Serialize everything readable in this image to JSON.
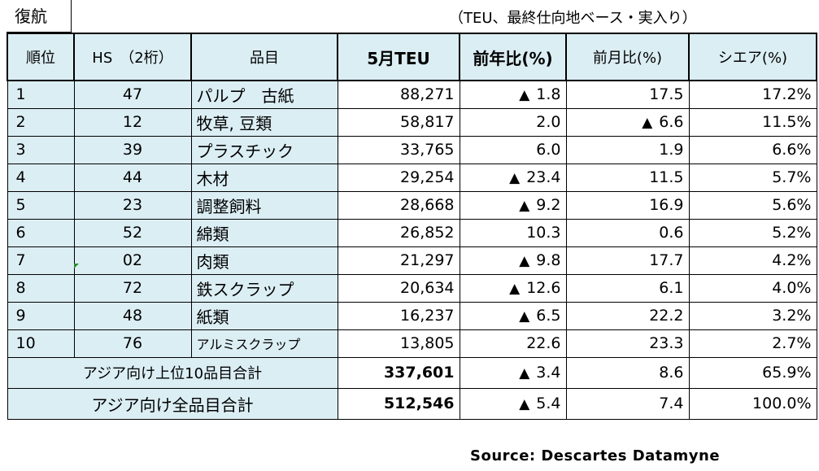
{
  "title": "復航",
  "unit_note": "（TEU、最終仕向地ベース・実入り）",
  "headers": {
    "rank": "順位",
    "hs": "HS　（2桁）",
    "item": "品目",
    "teu": "5月TEU",
    "yoy": "前年比(%)",
    "mom": "前月比(%)",
    "share": "シエア(%)"
  },
  "rows": [
    {
      "rank": "1",
      "hs": "47",
      "item": "パルプ　古紙",
      "teu": "88,271",
      "yoy_mark": "▲",
      "yoy": "1.8",
      "mom_mark": "",
      "mom": "17.5",
      "share": "17.2%"
    },
    {
      "rank": "2",
      "hs": "12",
      "item": "牧草, 豆類",
      "teu": "58,817",
      "yoy_mark": "",
      "yoy": "2.0",
      "mom_mark": "▲",
      "mom": "6.6",
      "share": "11.5%"
    },
    {
      "rank": "3",
      "hs": "39",
      "item": "プラスチック",
      "teu": "33,765",
      "yoy_mark": "",
      "yoy": "6.0",
      "mom_mark": "",
      "mom": "1.9",
      "share": "6.6%"
    },
    {
      "rank": "4",
      "hs": "44",
      "item": "木材",
      "teu": "29,254",
      "yoy_mark": "▲",
      "yoy": "23.4",
      "mom_mark": "",
      "mom": "11.5",
      "share": "5.7%"
    },
    {
      "rank": "5",
      "hs": "23",
      "item": "調整飼料",
      "teu": "28,668",
      "yoy_mark": "▲",
      "yoy": "9.2",
      "mom_mark": "",
      "mom": "16.9",
      "share": "5.6%"
    },
    {
      "rank": "6",
      "hs": "52",
      "item": "綿類",
      "teu": "26,852",
      "yoy_mark": "",
      "yoy": "10.3",
      "mom_mark": "",
      "mom": "0.6",
      "share": "5.2%"
    },
    {
      "rank": "7",
      "hs": "02",
      "item": "肉類",
      "teu": "21,297",
      "yoy_mark": "▲",
      "yoy": "9.8",
      "mom_mark": "",
      "mom": "17.7",
      "share": "4.2%"
    },
    {
      "rank": "8",
      "hs": "72",
      "item": "鉄スクラップ",
      "teu": "20,634",
      "yoy_mark": "▲",
      "yoy": "12.6",
      "mom_mark": "",
      "mom": "6.1",
      "share": "4.0%"
    },
    {
      "rank": "9",
      "hs": "48",
      "item": "紙類",
      "teu": "16,237",
      "yoy_mark": "▲",
      "yoy": "6.5",
      "mom_mark": "",
      "mom": "22.2",
      "share": "3.2%"
    },
    {
      "rank": "10",
      "hs": "76",
      "item": "アルミスクラップ",
      "teu": "13,805",
      "yoy_mark": "",
      "yoy": "22.6",
      "mom_mark": "",
      "mom": "23.3",
      "share": "2.7%"
    }
  ],
  "totals": [
    {
      "label": "アジア向け上位10品目合計",
      "teu": "337,601",
      "yoy_mark": "▲",
      "yoy": "3.4",
      "mom": "8.6",
      "share": "65.9%"
    },
    {
      "label": "アジア向け全品目合計",
      "teu": "512,546",
      "yoy_mark": "▲",
      "yoy": "5.4",
      "mom": "7.4",
      "share": "100.0%"
    }
  ],
  "source": "Source: Descartes Datamyne"
}
